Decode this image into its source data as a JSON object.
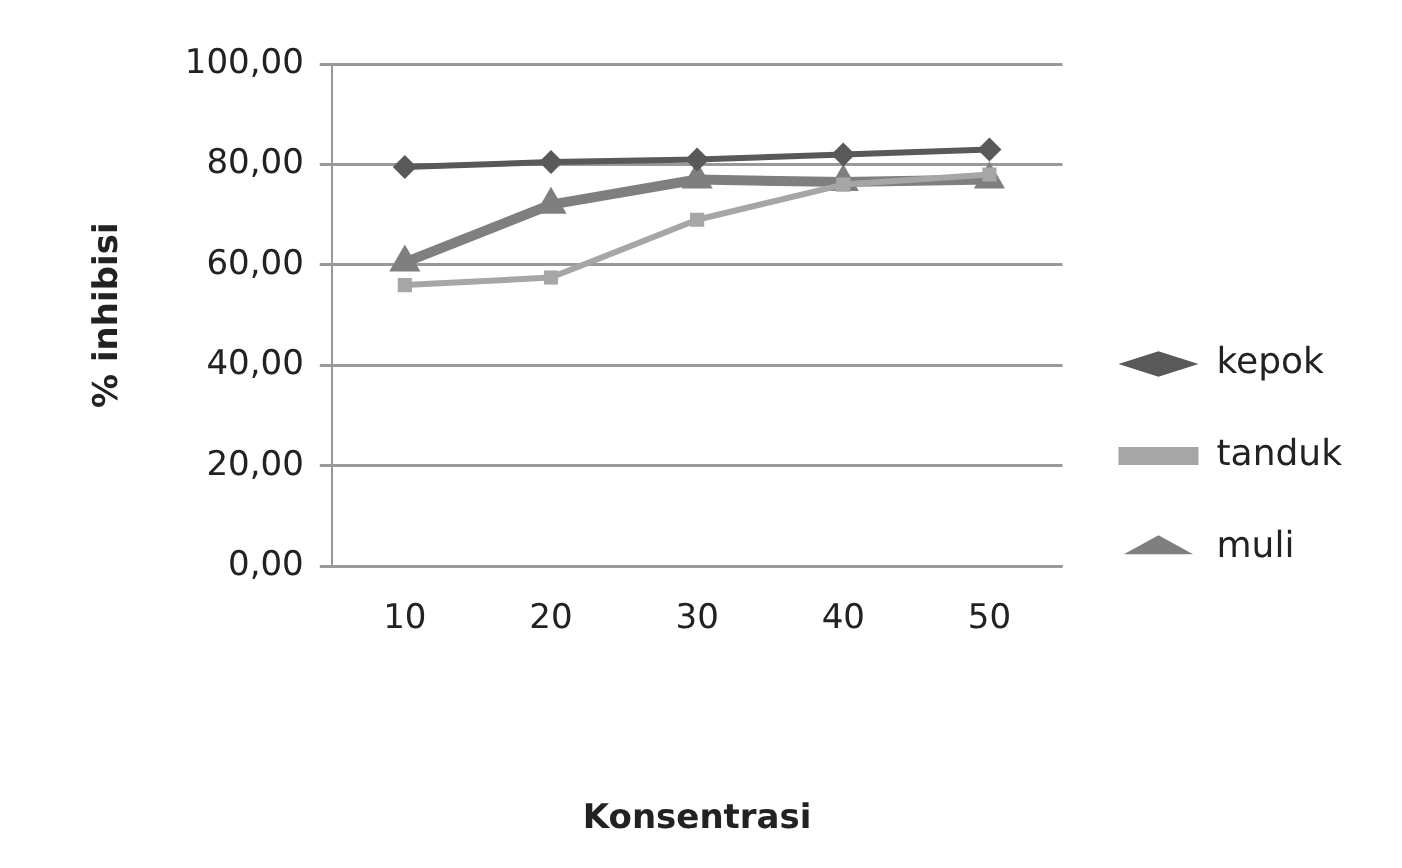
{
  "chart_data": {
    "type": "line",
    "xlabel": "Konsentrasi",
    "ylabel": "% inhibisi",
    "categories": [
      "10",
      "20",
      "30",
      "40",
      "50"
    ],
    "series": [
      {
        "name": "kepok",
        "color": "#595959",
        "marker": "diamond",
        "values": [
          79.5,
          80.5,
          81,
          82,
          83
        ]
      },
      {
        "name": "tanduk",
        "color": "#a6a6a6",
        "marker": "square",
        "values": [
          56,
          57.5,
          69,
          76,
          78
        ]
      },
      {
        "name": "muli",
        "color": "#7f7f7f",
        "marker": "triangle",
        "values": [
          60.5,
          72,
          77,
          76.5,
          77
        ]
      }
    ],
    "ylim": [
      0,
      100
    ],
    "yticks": [
      {
        "value": 0,
        "label": "0,00"
      },
      {
        "value": 20,
        "label": "20,00"
      },
      {
        "value": 40,
        "label": "40,00"
      },
      {
        "value": 60,
        "label": "60,00"
      },
      {
        "value": 80,
        "label": "80,00"
      },
      {
        "value": 100,
        "label": "100,00"
      }
    ],
    "grid": "y",
    "legend": "right",
    "line_style": "solid"
  }
}
